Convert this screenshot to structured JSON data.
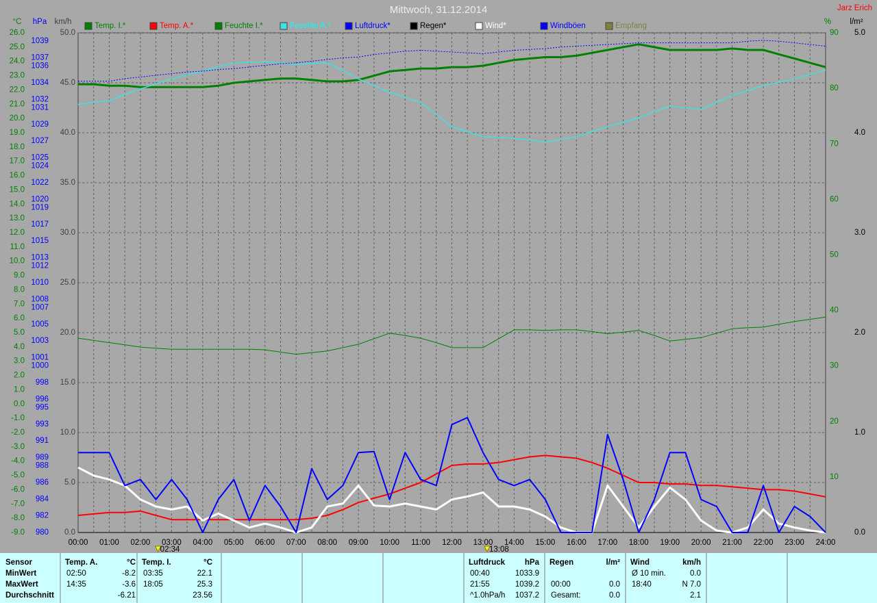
{
  "title": "Mittwoch, 31.12.2014",
  "author": "Jarz Erich",
  "chart_data": {
    "type": "line",
    "x": [
      "00:00",
      null,
      "01:00",
      null,
      "02:00",
      null,
      "03:00",
      null,
      "04:00",
      null,
      "05:00",
      null,
      "06:00",
      null,
      "07:00",
      null,
      "08:00",
      null,
      "09:00",
      null,
      "10:00",
      null,
      "11:00",
      null,
      "12:00",
      null,
      "13:00",
      null,
      "14:00",
      null,
      "15:00",
      null,
      "16:00",
      null,
      "17:00",
      null,
      "18:00",
      null,
      "19:00",
      null,
      "20:00",
      null,
      "21:00",
      null,
      "22:00",
      null,
      "23:00",
      null,
      "24:00"
    ],
    "ylabel": "°C",
    "ylim": [
      -9,
      26
    ],
    "ycolor": "#008000",
    "yticks": [
      {
        "value": -9,
        "label": "-9.0"
      },
      {
        "value": -8,
        "label": "-8.0"
      },
      {
        "value": -7,
        "label": "-7.0"
      },
      {
        "value": -6,
        "label": "-6.0"
      },
      {
        "value": -5,
        "label": "-5.0"
      },
      {
        "value": -4,
        "label": "-4.0"
      },
      {
        "value": -3,
        "label": "-3.0"
      },
      {
        "value": -2,
        "label": "-2.0"
      },
      {
        "value": -1,
        "label": "-1.0"
      },
      {
        "value": 0,
        "label": "0.0"
      },
      {
        "value": 1,
        "label": "1.0"
      },
      {
        "value": 2,
        "label": "2.0"
      },
      {
        "value": 3,
        "label": "3.0"
      },
      {
        "value": 4,
        "label": "4.0"
      },
      {
        "value": 5,
        "label": "5.0"
      },
      {
        "value": 6,
        "label": "6.0"
      },
      {
        "value": 7,
        "label": "7.0"
      },
      {
        "value": 8,
        "label": "8.0"
      },
      {
        "value": 9,
        "label": "9.0"
      },
      {
        "value": 10,
        "label": "10.0"
      },
      {
        "value": 11,
        "label": "11.0"
      },
      {
        "value": 12,
        "label": "12.0"
      },
      {
        "value": 13,
        "label": "13.0"
      },
      {
        "value": 14,
        "label": "14.0"
      },
      {
        "value": 15,
        "label": "15.0"
      },
      {
        "value": 16,
        "label": "16.0"
      },
      {
        "value": 17,
        "label": "17.0"
      },
      {
        "value": 18,
        "label": "18.0"
      },
      {
        "value": 19,
        "label": "19.0"
      },
      {
        "value": 20,
        "label": "20.0"
      },
      {
        "value": 21,
        "label": "21.0"
      },
      {
        "value": 22,
        "label": "22.0"
      },
      {
        "value": 23,
        "label": "23.0"
      },
      {
        "value": 24,
        "label": "24.0"
      },
      {
        "value": 25,
        "label": "25.0"
      },
      {
        "value": 26,
        "label": "26.0"
      }
    ],
    "y2label": "hPa",
    "y2lim": [
      980,
      1040
    ],
    "y2color": "#0000ff",
    "y2ticks": [
      980,
      982,
      984,
      986,
      988,
      989,
      991,
      993,
      995,
      996,
      998,
      1000,
      1001,
      1003,
      1005,
      1007,
      1008,
      1010,
      1012,
      1013,
      1015,
      1017,
      1019,
      1020,
      1022,
      1024,
      1025,
      1027,
      1029,
      1031,
      1032,
      1034,
      1036,
      1037,
      1039
    ],
    "y3label": "km/h",
    "y3lim": [
      0,
      50
    ],
    "y3color": "#404040",
    "y3ticks": [
      {
        "value": 0,
        "label": "0.0"
      },
      {
        "value": 5,
        "label": "5.0"
      },
      {
        "value": 10,
        "label": "10.0"
      },
      {
        "value": 15,
        "label": "15.0"
      },
      {
        "value": 20,
        "label": "20.0"
      },
      {
        "value": 25,
        "label": "25.0"
      },
      {
        "value": 30,
        "label": "30.0"
      },
      {
        "value": 35,
        "label": "35.0"
      },
      {
        "value": 40,
        "label": "40.0"
      },
      {
        "value": 45,
        "label": "45.0"
      },
      {
        "value": 50,
        "label": "50.0"
      }
    ],
    "y4label": "%",
    "y4lim": [
      0,
      90
    ],
    "y4color": "#008000",
    "y4ticks": [
      10,
      20,
      30,
      40,
      50,
      60,
      70,
      80,
      90
    ],
    "y5label": "l/m²",
    "y5lim": [
      0,
      5
    ],
    "y5color": "#000000",
    "y5ticks": [
      {
        "value": 0,
        "label": "0.0"
      },
      {
        "value": 1,
        "label": "1.0"
      },
      {
        "value": 2,
        "label": "2.0"
      },
      {
        "value": 3,
        "label": "3.0"
      },
      {
        "value": 4,
        "label": "4.0"
      },
      {
        "value": 5,
        "label": "5.0"
      }
    ],
    "grid": true,
    "annotations": [
      "02:34",
      "13:08"
    ],
    "series": [
      {
        "name": "Temp. I.*",
        "color": "#008000",
        "axis": "y",
        "width": 3,
        "values": [
          22.4,
          22.4,
          22.3,
          22.3,
          22.2,
          22.2,
          22.2,
          22.2,
          22.2,
          22.3,
          22.5,
          22.6,
          22.7,
          22.8,
          22.8,
          22.7,
          22.6,
          22.6,
          22.7,
          23.0,
          23.3,
          23.4,
          23.5,
          23.5,
          23.6,
          23.6,
          23.7,
          23.9,
          24.1,
          24.2,
          24.3,
          24.3,
          24.4,
          24.6,
          24.8,
          25.0,
          25.2,
          25.0,
          24.8,
          24.8,
          24.8,
          24.8,
          24.9,
          24.8,
          24.8,
          24.5,
          24.2,
          23.9,
          23.6
        ]
      },
      {
        "name": "Temp. A.*",
        "color": "#ff0000",
        "axis": "y",
        "width": 2,
        "values": [
          -7.8,
          -7.7,
          -7.6,
          -7.6,
          -7.5,
          -7.8,
          -8.1,
          -8.1,
          -8.1,
          -8.1,
          -8.1,
          -8.1,
          -8.1,
          -8.1,
          -8.1,
          -8.0,
          -7.8,
          -7.4,
          -6.9,
          -6.6,
          -6.3,
          -5.9,
          -5.5,
          -4.9,
          -4.3,
          -4.2,
          -4.2,
          -4.1,
          -3.9,
          -3.7,
          -3.6,
          -3.7,
          -3.8,
          -4.1,
          -4.5,
          -5.0,
          -5.5,
          -5.5,
          -5.6,
          -5.6,
          -5.7,
          -5.7,
          -5.8,
          -5.9,
          -6.0,
          -6.0,
          -6.1,
          -6.3,
          -6.5
        ]
      },
      {
        "name": "Feuchte I.*",
        "color": "#008000",
        "axis": "y4",
        "width": 1,
        "values": [
          35.0,
          34.6,
          34.2,
          33.8,
          33.4,
          33.2,
          33.0,
          33.0,
          33.0,
          33.0,
          33.0,
          33.0,
          32.9,
          32.5,
          32.1,
          32.4,
          32.7,
          33.3,
          33.9,
          34.9,
          35.9,
          35.5,
          35.0,
          34.2,
          33.3,
          33.3,
          33.3,
          34.9,
          36.5,
          36.5,
          36.4,
          36.5,
          36.5,
          36.2,
          35.8,
          36.1,
          36.4,
          35.5,
          34.5,
          34.8,
          35.1,
          35.9,
          36.7,
          36.9,
          37.0,
          37.5,
          38.0,
          38.4,
          38.8
        ]
      },
      {
        "name": "Feuchte A.*",
        "color": "#40e0e0",
        "axis": "y4",
        "width": 1.5,
        "values": [
          77.1,
          77.5,
          77.8,
          78.9,
          79.9,
          80.8,
          81.7,
          82.4,
          83.1,
          83.9,
          84.6,
          84.7,
          84.8,
          84.6,
          84.3,
          84.5,
          84.6,
          83.2,
          81.7,
          80.5,
          79.3,
          78.4,
          77.4,
          75.3,
          73.1,
          72.2,
          71.3,
          71.2,
          71.0,
          70.7,
          70.3,
          70.8,
          71.3,
          72.2,
          73.1,
          73.9,
          74.7,
          75.8,
          76.8,
          76.5,
          76.2,
          77.5,
          78.7,
          79.6,
          80.5,
          81.1,
          81.7,
          82.5,
          83.3
        ]
      },
      {
        "name": "Luftdruck*",
        "color": "#0000ff",
        "axis": "y2",
        "width": 1,
        "dashed": true,
        "values": [
          1034.2,
          1034.2,
          1034.2,
          1034.5,
          1034.7,
          1034.9,
          1035.1,
          1035.3,
          1035.4,
          1035.6,
          1035.7,
          1035.9,
          1036.1,
          1036.3,
          1036.4,
          1036.6,
          1036.8,
          1037.0,
          1037.1,
          1037.4,
          1037.6,
          1037.8,
          1037.9,
          1037.8,
          1037.7,
          1037.6,
          1037.5,
          1037.7,
          1037.9,
          1038.0,
          1038.1,
          1038.3,
          1038.4,
          1038.5,
          1038.6,
          1038.7,
          1038.8,
          1038.8,
          1038.8,
          1038.8,
          1038.8,
          1038.8,
          1038.8,
          1039.0,
          1039.1,
          1039.0,
          1038.8,
          1038.6,
          1038.4
        ]
      },
      {
        "name": "Regen*",
        "color": "#000000",
        "axis": "y5",
        "width": 1,
        "values": [
          0,
          0,
          0,
          0,
          0,
          0,
          0,
          0,
          0,
          0,
          0,
          0,
          0,
          0,
          0,
          0,
          0,
          0,
          0,
          0,
          0,
          0,
          0,
          0,
          0,
          0,
          0,
          0,
          0,
          0,
          0,
          0,
          0,
          0,
          0,
          0,
          0,
          0,
          0,
          0,
          0,
          0,
          0,
          0,
          0,
          0,
          0,
          0,
          0
        ]
      },
      {
        "name": "Wind*",
        "color": "#ffffff",
        "axis": "y3",
        "width": 3,
        "values": [
          6.5,
          5.7,
          5.3,
          4.7,
          3.3,
          2.6,
          2.3,
          2.6,
          1.2,
          1.9,
          1.2,
          0.5,
          0.9,
          0.5,
          0,
          0.5,
          2.6,
          2.9,
          4.7,
          2.7,
          2.6,
          2.9,
          2.6,
          2.3,
          3.3,
          3.6,
          4.0,
          2.6,
          2.6,
          2.3,
          1.6,
          0.5,
          0,
          0,
          4.7,
          2.6,
          0.5,
          2.6,
          4.5,
          3.3,
          1.2,
          0.2,
          0,
          0.5,
          2.3,
          0.9,
          0.5,
          0.2,
          0
        ]
      },
      {
        "name": "Windböen",
        "color": "#0000ff",
        "axis": "y3",
        "width": 2,
        "values": [
          8.0,
          8.0,
          8.0,
          4.7,
          5.3,
          3.3,
          5.3,
          3.3,
          0,
          3.3,
          5.3,
          1.2,
          4.7,
          2.6,
          0,
          6.4,
          3.3,
          4.7,
          8.0,
          8.1,
          3.3,
          8.0,
          5.3,
          4.7,
          10.8,
          11.5,
          8.0,
          5.3,
          4.7,
          5.3,
          3.3,
          0,
          0,
          0,
          9.8,
          5.3,
          0,
          3.3,
          8.0,
          8.0,
          3.3,
          2.6,
          0,
          0,
          4.7,
          0,
          2.6,
          1.6,
          0
        ]
      },
      {
        "name": "Empfang",
        "color": "#808040",
        "axis": "y"
      }
    ]
  },
  "stats": {
    "labels": [
      "Sensor",
      "MinWert",
      "MaxWert",
      "Durchschnitt"
    ],
    "groups": [
      {
        "name": "Temp. A.",
        "unit": "°C",
        "rows": [
          [
            "02:50",
            "-8.2"
          ],
          [
            "14:35",
            "-3.6"
          ],
          [
            null,
            "-6.21"
          ]
        ]
      },
      {
        "name": "Temp. I.",
        "unit": "°C",
        "rows": [
          [
            "03:35",
            "22.1"
          ],
          [
            "18:05",
            "25.3"
          ],
          [
            null,
            "23.56"
          ]
        ]
      },
      {
        "name": "Luftdruck",
        "unit": "hPa",
        "rows": [
          [
            "00:40",
            "1033.9"
          ],
          [
            "21:55",
            "1039.2"
          ],
          [
            "^1.0hPa/h",
            "1037.2"
          ]
        ]
      },
      {
        "name": "Regen",
        "unit": "l/m²",
        "rows": [
          [
            null,
            null
          ],
          [
            "00:00",
            "0.0"
          ],
          [
            "Gesamt:",
            "0.0"
          ]
        ]
      },
      {
        "name": "Wind",
        "unit": "km/h",
        "rows": [
          [
            "Ø 10 min.",
            "0.0"
          ],
          [
            "18:40",
            "N 7.0"
          ],
          [
            null,
            "2.1"
          ]
        ]
      }
    ]
  }
}
